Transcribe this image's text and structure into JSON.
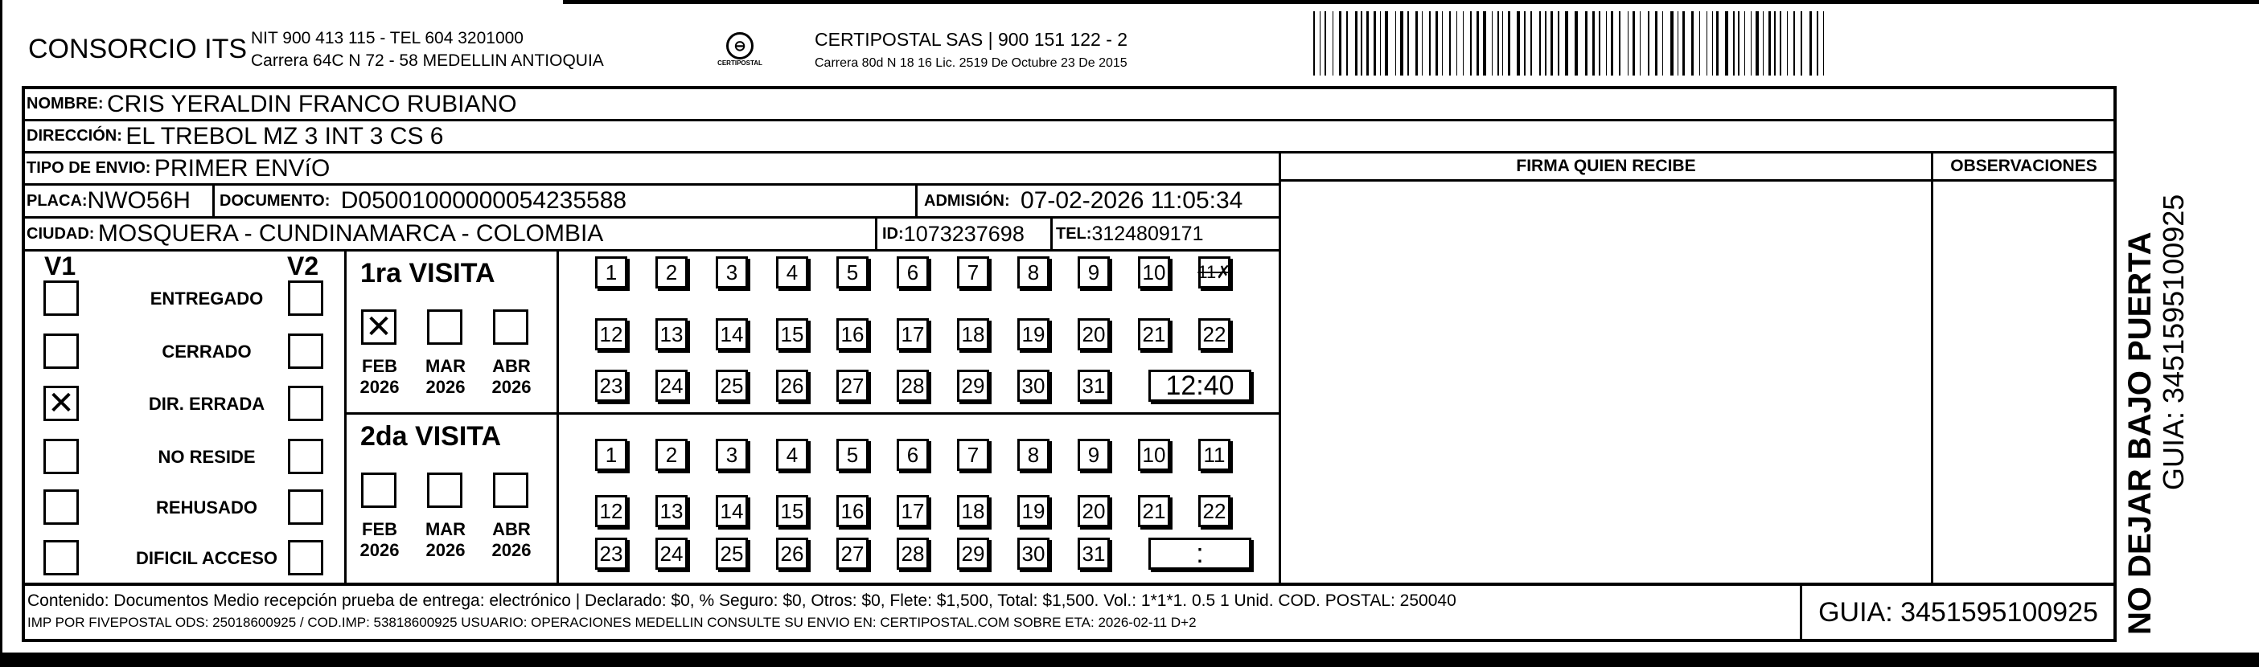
{
  "header": {
    "company": "CONSORCIO ITS",
    "company_line1": "NIT 900 413 115 - TEL 604 3201000",
    "company_line2": "Carrera 64C N 72 - 58 MEDELLIN ANTIOQUIA",
    "logo_text": "CERTIPOSTAL",
    "carrier_line1": "CERTIPOSTAL SAS | 900 151 122 - 2",
    "carrier_line2": "Carrera 80d N 18 16  Lic. 2519 De Octubre 23 De 2015"
  },
  "recipient": {
    "nombre_label": "NOMBRE:",
    "nombre": "CRIS YERALDIN FRANCO RUBIANO",
    "direccion_label": "DIRECCIÓN:",
    "direccion": "EL TREBOL MZ 3 INT 3 CS 6",
    "tipo_label": "TIPO DE ENVIO:",
    "tipo": "PRIMER ENVíO",
    "placa_label": "PLACA:",
    "placa": "NWO56H",
    "documento_label": "DOCUMENTO:",
    "documento": "D05001000000054235588",
    "admision_label": "ADMISIÓN:",
    "admision": "07-02-2026 11:05:34",
    "ciudad_label": "CIUDAD:",
    "ciudad": "MOSQUERA - CUNDINAMARCA - COLOMBIA",
    "id_label": "ID:",
    "id": "1073237698",
    "tel_label": "TEL:",
    "tel": "3124809171"
  },
  "firma_label": "FIRMA QUIEN RECIBE",
  "observaciones_label": "OBSERVACIONES",
  "status": {
    "v1_label": "V1",
    "v2_label": "V2",
    "options": [
      {
        "label": "ENTREGADO",
        "v1": false,
        "v2": false
      },
      {
        "label": "CERRADO",
        "v1": false,
        "v2": false
      },
      {
        "label": "DIR. ERRADA",
        "v1": true,
        "v2": false
      },
      {
        "label": "NO RESIDE",
        "v1": false,
        "v2": false
      },
      {
        "label": "REHUSADO",
        "v1": false,
        "v2": false
      },
      {
        "label": "DIFICIL ACCESO",
        "v1": false,
        "v2": false
      }
    ]
  },
  "visits": [
    {
      "title": "1ra VISITA",
      "months": [
        {
          "m": "FEB",
          "y": "2026",
          "checked": true
        },
        {
          "m": "MAR",
          "y": "2026",
          "checked": false
        },
        {
          "m": "ABR",
          "y": "2026",
          "checked": false
        }
      ],
      "marked_day": 11,
      "time": "12:40"
    },
    {
      "title": "2da VISITA",
      "months": [
        {
          "m": "FEB",
          "y": "2026",
          "checked": false
        },
        {
          "m": "MAR",
          "y": "2026",
          "checked": false
        },
        {
          "m": "ABR",
          "y": "2026",
          "checked": false
        }
      ],
      "marked_day": null,
      "time": ":"
    }
  ],
  "footer": {
    "line1": "Contenido: Documentos Medio recepción prueba de entrega: electrónico | Declarado: $0, % Seguro: $0, Otros: $0, Flete: $1,500, Total: $1,500. Vol.: 1*1*1. 0.5  1 Unid. COD. POSTAL: 250040",
    "line2": "IMP POR FIVEPOSTAL ODS: 25018600925 / COD.IMP: 53818600925 USUARIO: OPERACIONES MEDELLIN CONSULTE SU ENVIO EN: CERTIPOSTAL.COM SOBRE ETA: 2026-02-11 D+2",
    "guia": "GUIA: 3451595100925"
  },
  "side": {
    "warning": "NO DEJAR BAJO PUERTA",
    "guia": "GUIA: 3451595100925"
  }
}
